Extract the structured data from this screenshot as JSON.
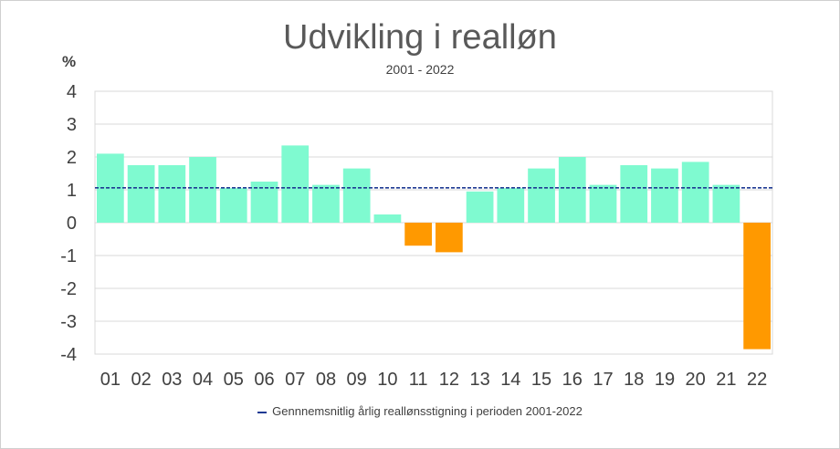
{
  "chart_data": {
    "type": "bar",
    "title": "Udvikling i realløn",
    "subtitle": "2001 - 2022",
    "ylabel": "%",
    "ylim": [
      -4,
      4
    ],
    "yticks": [
      4,
      3,
      2,
      1,
      0,
      -1,
      -2,
      -3,
      -4
    ],
    "categories": [
      "01",
      "02",
      "03",
      "04",
      "05",
      "06",
      "07",
      "08",
      "09",
      "10",
      "11",
      "12",
      "13",
      "14",
      "15",
      "16",
      "17",
      "18",
      "19",
      "20",
      "21",
      "22"
    ],
    "values": [
      2.1,
      1.75,
      1.75,
      2.0,
      1.05,
      1.25,
      2.35,
      1.15,
      1.65,
      0.25,
      -0.7,
      -0.9,
      0.95,
      1.05,
      1.65,
      2.0,
      1.15,
      1.75,
      1.65,
      1.85,
      1.15,
      -3.85
    ],
    "reference_line": {
      "value": 1.06,
      "label": "Gennnemsnitlig årlig reallønsstigning i perioden 2001-2022"
    },
    "colors": {
      "positive": "#7ffad0",
      "negative": "#ff9900",
      "line": "#1f3a93",
      "grid": "#d9d9d9"
    },
    "grid": true,
    "legend_position": "bottom"
  }
}
